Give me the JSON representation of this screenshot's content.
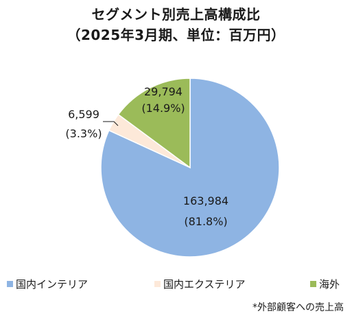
{
  "chart_data": {
    "type": "pie",
    "title": [
      "セグメント別売上高構成比",
      "（2025年3月期、単位：百万円）"
    ],
    "slices": [
      {
        "name": "国内インテリア",
        "value": 163984,
        "value_label": "163,984",
        "percent_label": "(81.8%)",
        "color": "#8eb4e3"
      },
      {
        "name": "国内エクステリア",
        "value": 6599,
        "value_label": "6,599",
        "percent_label": "(3.3%)",
        "color": "#fde9d9"
      },
      {
        "name": "海外",
        "value": 29794,
        "value_label": "29,794",
        "percent_label": "(14.9%)",
        "color": "#9bbb59"
      }
    ],
    "start": "12 o'clock, clockwise",
    "legend_position": "bottom",
    "note": "*外部顧客への売上高"
  }
}
